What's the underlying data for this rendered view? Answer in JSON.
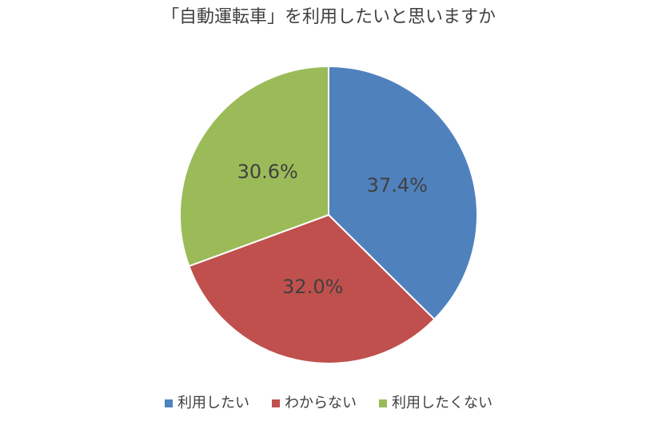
{
  "chart_data": {
    "type": "pie",
    "title": "「自動運転車」を利用したいと思いますか",
    "categories": [
      "利用したい",
      "わからない",
      "利用したくない"
    ],
    "values": [
      37.4,
      32.0,
      30.6
    ],
    "value_labels": [
      "37.4%",
      "32.0%",
      "30.6%"
    ],
    "colors": [
      "#4f81bd",
      "#c0504d",
      "#9bbb59"
    ],
    "legend": "bottom"
  }
}
